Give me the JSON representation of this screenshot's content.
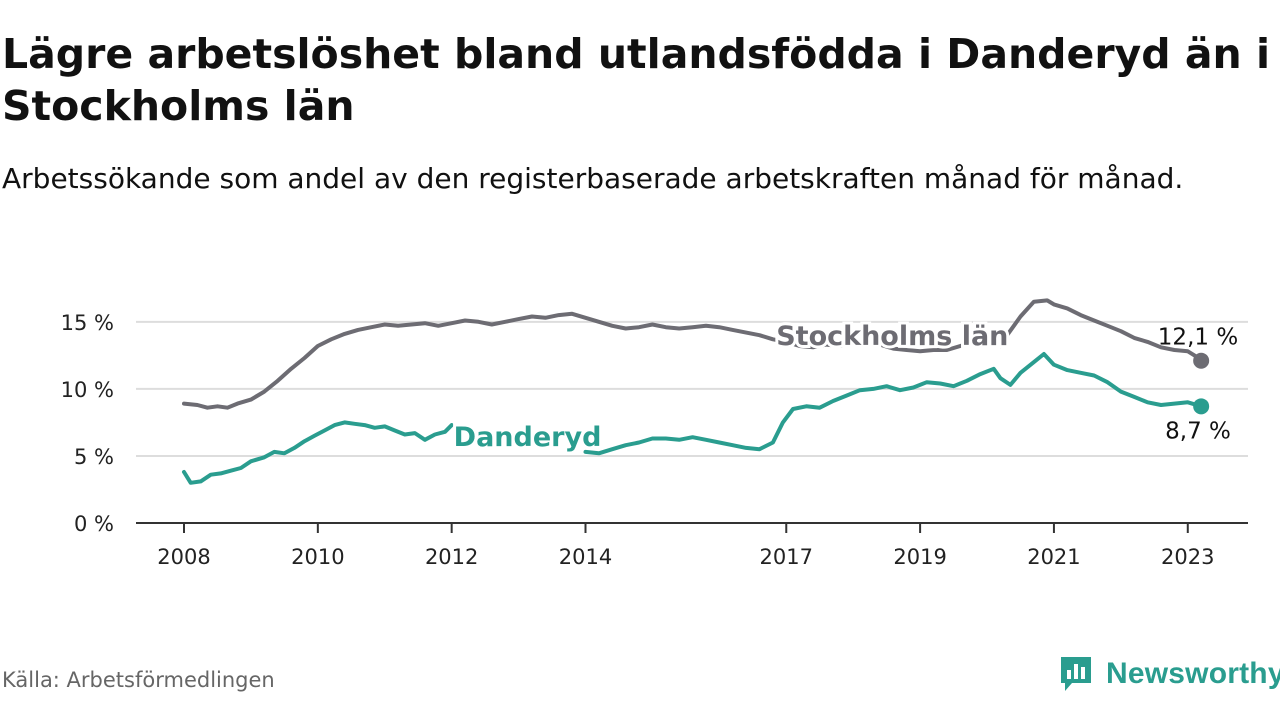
{
  "title": "Lägre arbetslöshet bland utlandsfödda i Danderyd än i Stockholms län",
  "subtitle": "Arbetssökande som andel av den registerbaserade arbetskraften månad för månad.",
  "source": "Källa: Arbetsförmedlingen",
  "brand": "Newsworthy",
  "colors": {
    "accent": "#2a9d8f",
    "gray": "#6d6c73",
    "grid": "#dddddd",
    "axis": "#333333"
  },
  "chart_data": {
    "type": "line",
    "ylim": [
      0,
      17
    ],
    "xlim": [
      2008,
      2023.9
    ],
    "y_ticks": [
      {
        "value": 0,
        "label": "0 %"
      },
      {
        "value": 5,
        "label": "5 %"
      },
      {
        "value": 10,
        "label": "10 %"
      },
      {
        "value": 15,
        "label": "15 %"
      }
    ],
    "x_ticks": [
      {
        "value": 2008,
        "label": "2008"
      },
      {
        "value": 2010,
        "label": "2010"
      },
      {
        "value": 2012,
        "label": "2012"
      },
      {
        "value": 2014,
        "label": "2014"
      },
      {
        "value": 2017,
        "label": "2017"
      },
      {
        "value": 2019,
        "label": "2019"
      },
      {
        "value": 2021,
        "label": "2021"
      },
      {
        "value": 2023,
        "label": "2023"
      }
    ],
    "series": [
      {
        "name": "Stockholms län",
        "color": "#6d6c73",
        "end_label": "12,1 %",
        "segments": [
          [
            [
              2008.0,
              8.9
            ],
            [
              2008.2,
              8.8
            ],
            [
              2008.35,
              8.6
            ],
            [
              2008.5,
              8.7
            ],
            [
              2008.65,
              8.6
            ],
            [
              2008.8,
              8.9
            ],
            [
              2009.0,
              9.2
            ],
            [
              2009.2,
              9.8
            ],
            [
              2009.4,
              10.6
            ],
            [
              2009.6,
              11.5
            ],
            [
              2009.8,
              12.3
            ],
            [
              2010.0,
              13.2
            ],
            [
              2010.2,
              13.7
            ],
            [
              2010.4,
              14.1
            ],
            [
              2010.6,
              14.4
            ],
            [
              2010.8,
              14.6
            ],
            [
              2011.0,
              14.8
            ],
            [
              2011.2,
              14.7
            ],
            [
              2011.4,
              14.8
            ],
            [
              2011.6,
              14.9
            ],
            [
              2011.8,
              14.7
            ],
            [
              2012.0,
              14.9
            ],
            [
              2012.2,
              15.1
            ],
            [
              2012.4,
              15.0
            ],
            [
              2012.6,
              14.8
            ],
            [
              2012.8,
              15.0
            ],
            [
              2013.0,
              15.2
            ],
            [
              2013.2,
              15.4
            ],
            [
              2013.4,
              15.3
            ],
            [
              2013.6,
              15.5
            ],
            [
              2013.8,
              15.6
            ],
            [
              2014.0,
              15.3
            ],
            [
              2014.2,
              15.0
            ],
            [
              2014.4,
              14.7
            ],
            [
              2014.6,
              14.5
            ],
            [
              2014.8,
              14.6
            ],
            [
              2015.0,
              14.8
            ],
            [
              2015.2,
              14.6
            ],
            [
              2015.4,
              14.5
            ],
            [
              2015.6,
              14.6
            ],
            [
              2015.8,
              14.7
            ],
            [
              2016.0,
              14.6
            ],
            [
              2016.2,
              14.4
            ],
            [
              2016.4,
              14.2
            ],
            [
              2016.6,
              14.0
            ],
            [
              2016.8,
              13.7
            ],
            [
              2017.0,
              13.5
            ],
            [
              2017.2,
              13.2
            ],
            [
              2017.4,
              13.1
            ],
            [
              2017.6,
              13.3
            ],
            [
              2017.8,
              13.2
            ],
            [
              2018.0,
              13.4
            ],
            [
              2018.2,
              13.3
            ],
            [
              2018.4,
              13.3
            ],
            [
              2018.6,
              13.0
            ],
            [
              2018.8,
              12.9
            ],
            [
              2019.0,
              12.8
            ],
            [
              2019.2,
              12.9
            ],
            [
              2019.4,
              12.9
            ],
            [
              2019.6,
              13.2
            ],
            [
              2019.8,
              13.5
            ],
            [
              2020.0,
              13.8
            ],
            [
              2020.2,
              13.2
            ],
            [
              2020.3,
              14.0
            ],
            [
              2020.5,
              15.4
            ],
            [
              2020.7,
              16.5
            ],
            [
              2020.9,
              16.6
            ],
            [
              2021.0,
              16.3
            ],
            [
              2021.2,
              16.0
            ],
            [
              2021.4,
              15.5
            ],
            [
              2021.6,
              15.1
            ],
            [
              2021.8,
              14.7
            ],
            [
              2022.0,
              14.3
            ],
            [
              2022.2,
              13.8
            ],
            [
              2022.4,
              13.5
            ],
            [
              2022.6,
              13.1
            ],
            [
              2022.8,
              12.9
            ],
            [
              2023.0,
              12.8
            ],
            [
              2023.1,
              12.5
            ],
            [
              2023.2,
              12.1
            ]
          ]
        ]
      },
      {
        "name": "Danderyd",
        "color": "#2a9d8f",
        "end_label": "8,7 %",
        "segments": [
          [
            [
              2008.0,
              3.8
            ],
            [
              2008.1,
              3.0
            ],
            [
              2008.25,
              3.1
            ],
            [
              2008.4,
              3.6
            ],
            [
              2008.55,
              3.7
            ],
            [
              2008.7,
              3.9
            ],
            [
              2008.85,
              4.1
            ],
            [
              2009.0,
              4.6
            ],
            [
              2009.2,
              4.9
            ],
            [
              2009.35,
              5.3
            ],
            [
              2009.5,
              5.2
            ],
            [
              2009.65,
              5.6
            ],
            [
              2009.8,
              6.1
            ],
            [
              2009.95,
              6.5
            ],
            [
              2010.1,
              6.9
            ],
            [
              2010.25,
              7.3
            ],
            [
              2010.4,
              7.5
            ],
            [
              2010.55,
              7.4
            ],
            [
              2010.7,
              7.3
            ],
            [
              2010.85,
              7.1
            ],
            [
              2011.0,
              7.2
            ],
            [
              2011.15,
              6.9
            ],
            [
              2011.3,
              6.6
            ],
            [
              2011.45,
              6.7
            ],
            [
              2011.6,
              6.2
            ],
            [
              2011.75,
              6.6
            ],
            [
              2011.9,
              6.8
            ],
            [
              2012.0,
              7.3
            ]
          ],
          [
            [
              2014.0,
              5.3
            ],
            [
              2014.2,
              5.2
            ],
            [
              2014.4,
              5.5
            ],
            [
              2014.6,
              5.8
            ],
            [
              2014.8,
              6.0
            ],
            [
              2015.0,
              6.3
            ],
            [
              2015.2,
              6.3
            ],
            [
              2015.4,
              6.2
            ],
            [
              2015.6,
              6.4
            ],
            [
              2015.8,
              6.2
            ],
            [
              2016.0,
              6.0
            ],
            [
              2016.2,
              5.8
            ],
            [
              2016.4,
              5.6
            ],
            [
              2016.6,
              5.5
            ],
            [
              2016.8,
              6.0
            ],
            [
              2016.95,
              7.5
            ],
            [
              2017.1,
              8.5
            ],
            [
              2017.3,
              8.7
            ],
            [
              2017.5,
              8.6
            ],
            [
              2017.7,
              9.1
            ],
            [
              2017.9,
              9.5
            ],
            [
              2018.1,
              9.9
            ],
            [
              2018.3,
              10.0
            ],
            [
              2018.5,
              10.2
            ],
            [
              2018.7,
              9.9
            ],
            [
              2018.9,
              10.1
            ],
            [
              2019.1,
              10.5
            ],
            [
              2019.3,
              10.4
            ],
            [
              2019.5,
              10.2
            ],
            [
              2019.7,
              10.6
            ],
            [
              2019.9,
              11.1
            ],
            [
              2020.1,
              11.5
            ],
            [
              2020.2,
              10.8
            ],
            [
              2020.35,
              10.3
            ],
            [
              2020.5,
              11.2
            ],
            [
              2020.7,
              12.0
            ],
            [
              2020.85,
              12.6
            ],
            [
              2021.0,
              11.8
            ],
            [
              2021.2,
              11.4
            ],
            [
              2021.4,
              11.2
            ],
            [
              2021.6,
              11.0
            ],
            [
              2021.8,
              10.5
            ],
            [
              2022.0,
              9.8
            ],
            [
              2022.2,
              9.4
            ],
            [
              2022.4,
              9.0
            ],
            [
              2022.6,
              8.8
            ],
            [
              2022.8,
              8.9
            ],
            [
              2023.0,
              9.0
            ],
            [
              2023.2,
              8.7
            ]
          ]
        ]
      }
    ]
  }
}
